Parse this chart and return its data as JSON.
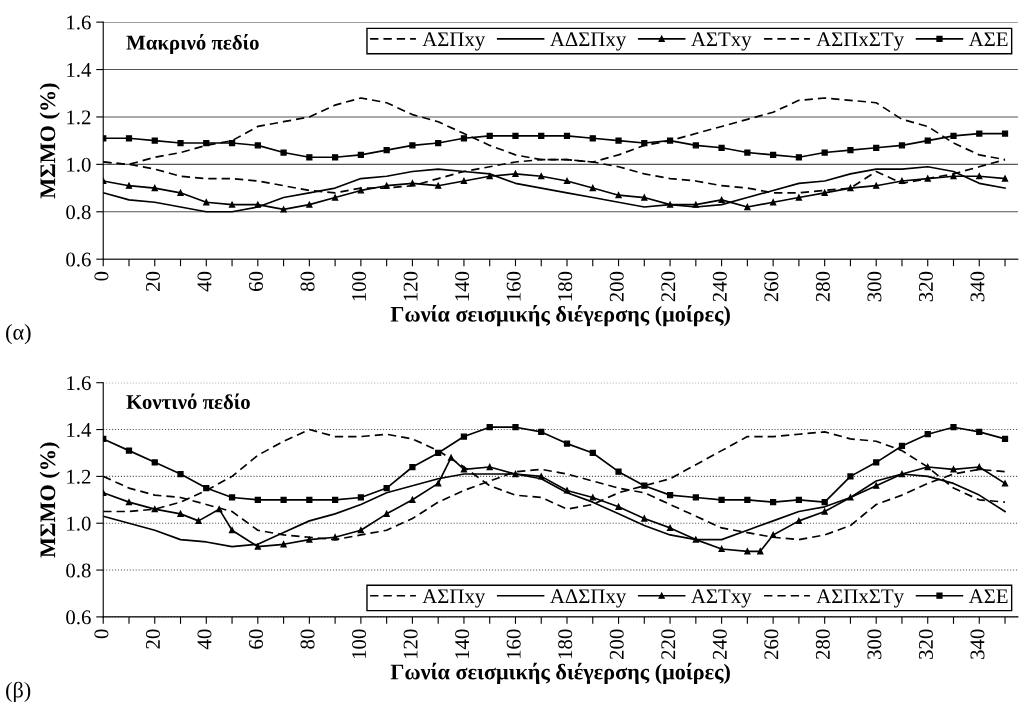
{
  "chart_data": [
    {
      "type": "line",
      "title": "Μακρινό πεδίο",
      "xlabel": "Γωνία σεισμικής διέγερσης (μοίρες)",
      "ylabel": "ΜΣΜΟ (%)",
      "annotations": [
        "(α)"
      ],
      "x": [
        0,
        10,
        20,
        30,
        40,
        50,
        60,
        70,
        80,
        90,
        100,
        110,
        120,
        130,
        140,
        150,
        160,
        170,
        180,
        190,
        200,
        210,
        220,
        230,
        240,
        250,
        260,
        270,
        280,
        290,
        300,
        310,
        320,
        330,
        340,
        350
      ],
      "xlim": [
        0,
        355
      ],
      "ylim": [
        0.6,
        1.6
      ],
      "yticks": [
        {
          "value": 0.6,
          "label": "0.6"
        },
        {
          "value": 0.8,
          "label": "0.8"
        },
        {
          "value": 1.0,
          "label": "1.0"
        },
        {
          "value": 1.2,
          "label": "1.2"
        },
        {
          "value": 1.4,
          "label": "1.4"
        },
        {
          "value": 1.6,
          "label": "1.6"
        }
      ],
      "xticks": [
        0,
        {
          "value": 10,
          "label": null
        },
        20,
        {
          "value": 30,
          "label": null
        },
        40,
        {
          "value": 50,
          "label": null
        },
        60,
        {
          "value": 70,
          "label": null
        },
        80,
        {
          "value": 90,
          "label": null
        },
        100,
        {
          "value": 110,
          "label": null
        },
        120,
        {
          "value": 130,
          "label": null
        },
        140,
        {
          "value": 150,
          "label": null
        },
        160,
        {
          "value": 170,
          "label": null
        },
        180,
        {
          "value": 190,
          "label": null
        },
        200,
        {
          "value": 210,
          "label": null
        },
        220,
        {
          "value": 230,
          "label": null
        },
        240,
        {
          "value": 250,
          "label": null
        },
        260,
        {
          "value": 270,
          "label": null
        },
        280,
        {
          "value": 290,
          "label": null
        },
        300,
        {
          "value": 310,
          "label": null
        },
        320,
        {
          "value": 330,
          "label": null
        },
        340,
        {
          "value": 350,
          "label": null
        }
      ],
      "grid": "y",
      "legend": "top right",
      "series": [
        {
          "name": "ΑΣΠxy",
          "color": "#000000",
          "line_style": "dashed",
          "marker": "none",
          "values": [
            1.01,
            1.0,
            1.03,
            1.05,
            1.08,
            1.1,
            1.16,
            1.18,
            1.2,
            1.25,
            1.28,
            1.26,
            1.21,
            1.18,
            1.13,
            1.08,
            1.04,
            1.02,
            1.02,
            1.01,
            1.04,
            1.08,
            1.1,
            1.13,
            1.16,
            1.19,
            1.22,
            1.27,
            1.28,
            1.27,
            1.26,
            1.19,
            1.16,
            1.09,
            1.04,
            1.02
          ]
        },
        {
          "name": "ΑΔΣΠxy",
          "color": "#000000",
          "line_style": "solid",
          "marker": "none",
          "values": [
            0.88,
            0.85,
            0.84,
            0.82,
            0.8,
            0.8,
            0.82,
            0.86,
            0.88,
            0.9,
            0.94,
            0.95,
            0.97,
            0.98,
            0.97,
            0.96,
            0.92,
            0.9,
            0.88,
            0.86,
            0.84,
            0.82,
            0.83,
            0.82,
            0.83,
            0.86,
            0.89,
            0.92,
            0.93,
            0.96,
            0.98,
            0.98,
            0.99,
            0.97,
            0.92,
            0.9
          ]
        },
        {
          "name": "ΑΣΤxy",
          "color": "#000000",
          "line_style": "solid",
          "marker": "triangle",
          "values": [
            0.93,
            0.91,
            0.9,
            0.88,
            0.84,
            0.83,
            0.83,
            0.81,
            0.83,
            0.86,
            0.89,
            0.91,
            0.92,
            0.91,
            0.93,
            0.95,
            0.96,
            0.95,
            0.93,
            0.9,
            0.87,
            0.86,
            0.83,
            0.83,
            0.85,
            0.82,
            0.84,
            0.86,
            0.88,
            0.9,
            0.91,
            0.93,
            0.94,
            0.95,
            0.95,
            0.94
          ]
        },
        {
          "name": "ΑΣΠxΣΤy",
          "color": "#000000",
          "line_style": "dashed",
          "marker": "none",
          "values": [
            1.01,
            1.0,
            0.98,
            0.95,
            0.94,
            0.94,
            0.93,
            0.91,
            0.89,
            0.88,
            0.9,
            0.9,
            0.91,
            0.94,
            0.97,
            0.99,
            1.01,
            1.02,
            1.02,
            1.01,
            0.99,
            0.96,
            0.94,
            0.93,
            0.91,
            0.9,
            0.88,
            0.88,
            0.89,
            0.9,
            0.97,
            0.92,
            0.94,
            0.96,
            0.99,
            1.02
          ]
        },
        {
          "name": "ΑΣΕ",
          "color": "#000000",
          "line_style": "solid",
          "marker": "square",
          "values": [
            1.11,
            1.11,
            1.1,
            1.09,
            1.09,
            1.09,
            1.08,
            1.05,
            1.03,
            1.03,
            1.04,
            1.06,
            1.08,
            1.09,
            1.11,
            1.12,
            1.12,
            1.12,
            1.12,
            1.11,
            1.1,
            1.09,
            1.1,
            1.08,
            1.07,
            1.05,
            1.04,
            1.03,
            1.05,
            1.06,
            1.07,
            1.08,
            1.1,
            1.12,
            1.13,
            1.13
          ]
        }
      ]
    },
    {
      "type": "line",
      "title": "Κοντινό πεδίο",
      "xlabel": "Γωνία σεισμικής διέγερσης (μοίρες)",
      "ylabel": "ΜΣΜΟ (%)",
      "annotations": [
        "(β)"
      ],
      "x": [
        0,
        10,
        20,
        30,
        40,
        50,
        60,
        70,
        80,
        90,
        100,
        110,
        120,
        130,
        140,
        150,
        160,
        170,
        180,
        190,
        200,
        210,
        220,
        230,
        240,
        250,
        260,
        270,
        280,
        290,
        300,
        310,
        320,
        330,
        340,
        350
      ],
      "xlim": [
        0,
        355
      ],
      "ylim": [
        0.6,
        1.6
      ],
      "yticks": [
        {
          "value": 0.6,
          "label": "0.6"
        },
        {
          "value": 0.8,
          "label": "0.8"
        },
        {
          "value": 1.0,
          "label": "1.0"
        },
        {
          "value": 1.2,
          "label": "1.2"
        },
        {
          "value": 1.4,
          "label": "1.4"
        },
        {
          "value": 1.6,
          "label": "1.6"
        }
      ],
      "xticks": [
        0,
        {
          "value": 10,
          "label": null
        },
        20,
        {
          "value": 30,
          "label": null
        },
        40,
        {
          "value": 50,
          "label": null
        },
        60,
        {
          "value": 70,
          "label": null
        },
        80,
        {
          "value": 90,
          "label": null
        },
        100,
        {
          "value": 110,
          "label": null
        },
        120,
        {
          "value": 130,
          "label": null
        },
        140,
        {
          "value": 150,
          "label": null
        },
        160,
        {
          "value": 170,
          "label": null
        },
        180,
        {
          "value": 190,
          "label": null
        },
        200,
        {
          "value": 210,
          "label": null
        },
        220,
        {
          "value": 230,
          "label": null
        },
        240,
        {
          "value": 250,
          "label": null
        },
        260,
        {
          "value": 270,
          "label": null
        },
        280,
        {
          "value": 290,
          "label": null
        },
        300,
        {
          "value": 310,
          "label": null
        },
        320,
        {
          "value": 330,
          "label": null
        },
        340,
        {
          "value": 350,
          "label": null
        }
      ],
      "grid": "y",
      "legend": "bottom right",
      "series": [
        {
          "name": "ΑΣΠxy",
          "color": "#000000",
          "line_style": "dashed",
          "marker": "none",
          "values": [
            1.05,
            1.05,
            1.06,
            1.09,
            1.14,
            1.2,
            1.29,
            1.35,
            1.4,
            1.37,
            1.37,
            1.38,
            1.36,
            1.31,
            1.24,
            1.16,
            1.12,
            1.11,
            1.06,
            1.08,
            1.13,
            1.16,
            1.19,
            1.25,
            1.31,
            1.37,
            1.37,
            1.38,
            1.39,
            1.36,
            1.35,
            1.31,
            1.24,
            1.15,
            1.1,
            1.09
          ]
        },
        {
          "name": "ΑΔΣΠxy",
          "color": "#000000",
          "line_style": "solid",
          "marker": "none",
          "values": [
            1.03,
            1.0,
            0.97,
            0.93,
            0.92,
            0.9,
            0.91,
            0.96,
            1.01,
            1.04,
            1.08,
            1.13,
            1.16,
            1.19,
            1.21,
            1.21,
            1.21,
            1.19,
            1.13,
            1.09,
            1.04,
            0.99,
            0.95,
            0.93,
            0.93,
            0.97,
            1.01,
            1.05,
            1.07,
            1.11,
            1.18,
            1.21,
            1.2,
            1.17,
            1.12,
            1.05
          ]
        },
        {
          "name": "ΑΣΤxy",
          "color": "#000000",
          "line_style": "solid",
          "marker": "triangle",
          "x": [
            0,
            10,
            20,
            30,
            37,
            45,
            50,
            60,
            70,
            80,
            90,
            100,
            110,
            120,
            130,
            135,
            140,
            150,
            160,
            170,
            180,
            190,
            200,
            210,
            220,
            230,
            240,
            250,
            255,
            260,
            270,
            280,
            290,
            300,
            310,
            320,
            330,
            340,
            350
          ],
          "values": [
            1.13,
            1.09,
            1.06,
            1.04,
            1.01,
            1.06,
            0.97,
            0.9,
            0.91,
            0.93,
            0.94,
            0.97,
            1.04,
            1.1,
            1.17,
            1.28,
            1.23,
            1.24,
            1.21,
            1.2,
            1.14,
            1.11,
            1.07,
            1.02,
            0.98,
            0.93,
            0.89,
            0.88,
            0.88,
            0.95,
            1.01,
            1.05,
            1.11,
            1.16,
            1.21,
            1.24,
            1.23,
            1.24,
            1.17
          ]
        },
        {
          "name": "ΑΣΠxΣΤy",
          "color": "#000000",
          "line_style": "dashed",
          "marker": "none",
          "values": [
            1.2,
            1.15,
            1.12,
            1.11,
            1.08,
            1.05,
            0.97,
            0.95,
            0.94,
            0.93,
            0.95,
            0.97,
            1.02,
            1.09,
            1.14,
            1.18,
            1.22,
            1.23,
            1.21,
            1.18,
            1.15,
            1.13,
            1.08,
            1.03,
            0.98,
            0.96,
            0.94,
            0.93,
            0.95,
            0.99,
            1.08,
            1.12,
            1.17,
            1.21,
            1.23,
            1.22
          ]
        },
        {
          "name": "ΑΣΕ",
          "color": "#000000",
          "line_style": "solid",
          "marker": "square",
          "values": [
            1.36,
            1.31,
            1.26,
            1.21,
            1.15,
            1.11,
            1.1,
            1.1,
            1.1,
            1.1,
            1.11,
            1.15,
            1.24,
            1.3,
            1.37,
            1.41,
            1.41,
            1.39,
            1.34,
            1.3,
            1.22,
            1.16,
            1.12,
            1.11,
            1.1,
            1.1,
            1.09,
            1.1,
            1.09,
            1.2,
            1.26,
            1.33,
            1.38,
            1.41,
            1.39,
            1.36
          ]
        }
      ]
    }
  ]
}
